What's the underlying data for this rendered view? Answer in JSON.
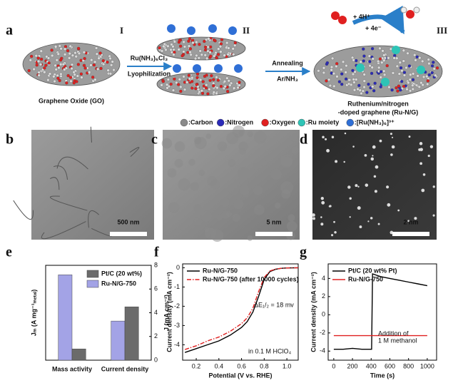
{
  "panel_labels": [
    "a",
    "b",
    "c",
    "d",
    "e",
    "f",
    "g"
  ],
  "scheme": {
    "stages": [
      "I",
      "II",
      "III"
    ],
    "go_label": "Graphene Oxide (GO)",
    "step1": [
      "Ru(NH₃)₆Cl₃",
      "Lyophilization"
    ],
    "step2": [
      "Annealing",
      "Ar/NH₃"
    ],
    "product": [
      "Ruthenium/nitrogen",
      "-doped graphene (Ru-N/G)"
    ],
    "reaction": [
      "+ 4H⁺",
      "+ 4e⁻"
    ],
    "legend": [
      {
        "label": ":Carbon",
        "color": "#8a8a8a"
      },
      {
        "label": ":Nitrogen",
        "color": "#2a2ab8"
      },
      {
        "label": ":Oxygen",
        "color": "#e02020"
      },
      {
        "label": ":Ru moiety",
        "color": "#2ec4b6"
      },
      {
        "label": ":[Ru(NH₃)₆]³⁺",
        "color": "#2f6fd6"
      }
    ]
  },
  "micrographs": [
    {
      "scale_bar": "500 nm"
    },
    {
      "scale_bar": "5 nm"
    },
    {
      "scale_bar": "2 nm"
    }
  ],
  "chart_data": [
    {
      "type": "bar",
      "categories": [
        "Mass activity",
        "Current density"
      ],
      "series": [
        {
          "name": "Ru-N/G-750",
          "color": "#a3a3e6",
          "axis": "y2",
          "values": [
            7.2,
            3.3
          ]
        },
        {
          "name": "Pt/C (20 wt%)",
          "color": "#6b6b6b",
          "axis": "y2",
          "values": [
            0.95,
            4.5
          ]
        }
      ],
      "y_label": "Jₘ (A mg⁻¹ₘₑₜₐₗ)",
      "y2_label": "J (mA cm⁻²)",
      "y2lim": [
        0,
        8
      ],
      "y2ticks": [
        0,
        2,
        4,
        6,
        8
      ]
    },
    {
      "type": "line",
      "x": [
        0.1,
        0.2,
        0.3,
        0.4,
        0.5,
        0.6,
        0.65,
        0.7,
        0.75,
        0.8,
        0.85,
        0.9,
        0.95,
        1.0,
        1.1
      ],
      "series": [
        {
          "name": "Ru-N/G-750",
          "color": "#000000",
          "dash": false,
          "values": [
            -4.4,
            -4.2,
            -4.0,
            -3.8,
            -3.5,
            -3.1,
            -2.8,
            -2.3,
            -1.5,
            -0.6,
            -0.2,
            -0.08,
            -0.03,
            -0.01,
            0
          ]
        },
        {
          "name": "Ru-N/G-750 (after 10000 cycles)",
          "color": "#e02020",
          "dash": true,
          "values": [
            -4.25,
            -4.05,
            -3.8,
            -3.6,
            -3.3,
            -2.9,
            -2.6,
            -2.1,
            -1.25,
            -0.5,
            -0.17,
            -0.07,
            -0.03,
            -0.01,
            0
          ]
        }
      ],
      "x_label": "Potential (V vs. RHE)",
      "y_label": "Current density (mA cm⁻²)",
      "annotations": [
        "ΔE₁/₂ = 18 mv",
        "in 0.1 M HClO₄"
      ],
      "xlim": [
        0.08,
        1.1
      ],
      "xticks": [
        0.2,
        0.4,
        0.6,
        0.8,
        {
          "value": 1,
          "label": "1.0"
        }
      ],
      "ylim": [
        -4.8,
        0.2
      ],
      "yticks": [
        -4,
        -3,
        -2,
        -1,
        0
      ]
    },
    {
      "type": "line",
      "x": [
        0,
        100,
        200,
        300,
        405,
        415,
        500,
        600,
        700,
        800,
        900,
        1000
      ],
      "series": [
        {
          "name": "Pt/C (20 wt% Pt)",
          "color": "#000000",
          "dash": false,
          "values": [
            -3.8,
            -3.8,
            -3.7,
            -3.8,
            -3.8,
            4.5,
            4.2,
            4.0,
            3.8,
            3.6,
            3.4,
            3.2
          ]
        },
        {
          "name": "Ru-N/G-750",
          "color": "#e02020",
          "dash": false,
          "values": [
            -2.3,
            -2.3,
            -2.3,
            -2.3,
            -2.3,
            -2.3,
            -2.3,
            -2.3,
            -2.3,
            -2.3,
            -2.3,
            -2.3
          ]
        }
      ],
      "x_label": "Time (s)",
      "y_label": "Current density (mA cm⁻²)",
      "annotations": [
        "Addition of",
        "1 M methanol"
      ],
      "xlim": [
        -60,
        1100
      ],
      "xticks": [
        0,
        200,
        400,
        600,
        800,
        1000
      ],
      "ylim": [
        -5,
        5.6
      ],
      "yticks": [
        -4,
        -2,
        0,
        2,
        4
      ]
    }
  ]
}
